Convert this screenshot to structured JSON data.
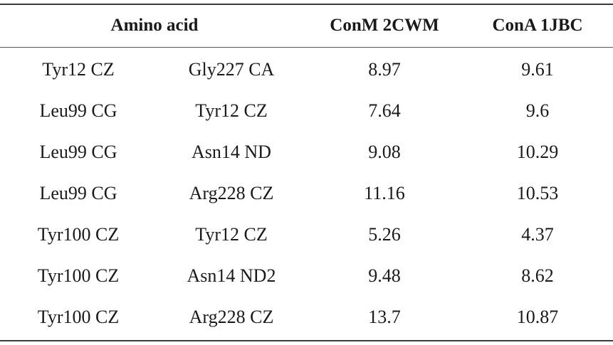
{
  "table": {
    "headers": {
      "amino_acid": "Amino acid",
      "conm": "ConM 2CWM",
      "cona": "ConA 1JBC"
    },
    "rows": [
      {
        "aa1": "Tyr12 CZ",
        "aa2": "Gly227 CA",
        "conm": "8.97",
        "cona": "9.61"
      },
      {
        "aa1": "Leu99 CG",
        "aa2": "Tyr12 CZ",
        "conm": "7.64",
        "cona": "9.6"
      },
      {
        "aa1": "Leu99 CG",
        "aa2": "Asn14 ND",
        "conm": "9.08",
        "cona": "10.29"
      },
      {
        "aa1": "Leu99 CG",
        "aa2": "Arg228 CZ",
        "conm": "11.16",
        "cona": "10.53"
      },
      {
        "aa1": "Tyr100 CZ",
        "aa2": "Tyr12 CZ",
        "conm": "5.26",
        "cona": "4.37"
      },
      {
        "aa1": "Tyr100 CZ",
        "aa2": "Asn14 ND2",
        "conm": "9.48",
        "cona": "8.62"
      },
      {
        "aa1": "Tyr100 CZ",
        "aa2": "Arg228 CZ",
        "conm": "13.7",
        "cona": "10.87"
      }
    ]
  }
}
